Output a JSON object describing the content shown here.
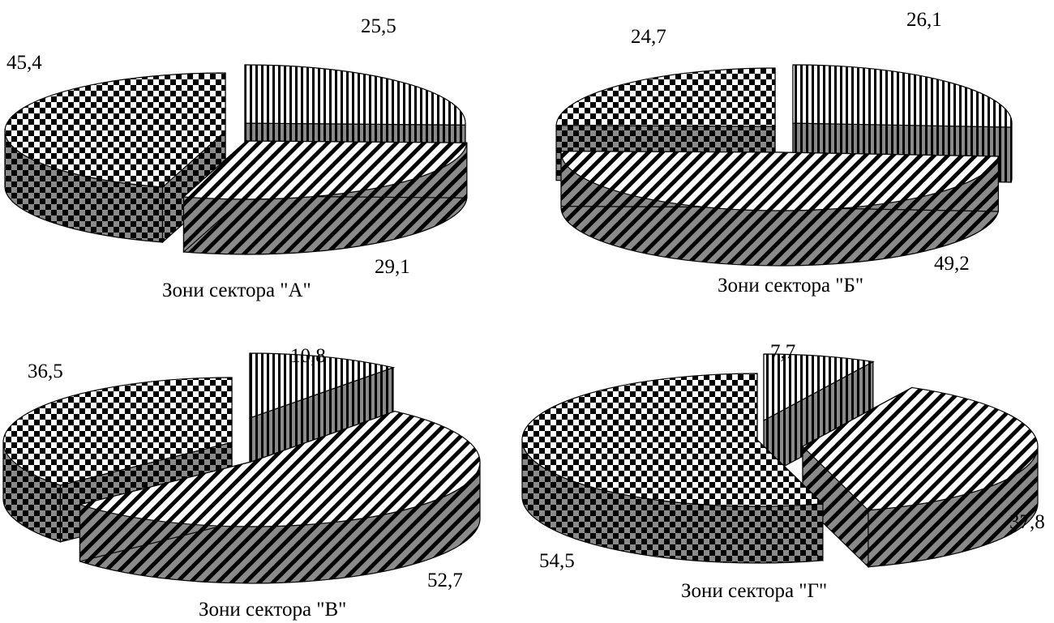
{
  "chart_data": [
    {
      "type": "pie",
      "title": "Зони сектора \"А\"",
      "slices": [
        {
          "pattern": "vertical",
          "value": 25.5,
          "label": "25,5"
        },
        {
          "pattern": "diagonal",
          "value": 29.1,
          "label": "29,1"
        },
        {
          "pattern": "checker",
          "value": 45.4,
          "label": "45,4"
        }
      ]
    },
    {
      "type": "pie",
      "title": "Зони сектора \"Б\"",
      "slices": [
        {
          "pattern": "vertical",
          "value": 26.1,
          "label": "26,1"
        },
        {
          "pattern": "diagonal",
          "value": 49.2,
          "label": "49,2"
        },
        {
          "pattern": "checker",
          "value": 24.7,
          "label": "24,7"
        }
      ]
    },
    {
      "type": "pie",
      "title": "Зони сектора \"В\"",
      "slices": [
        {
          "pattern": "vertical",
          "value": 10.8,
          "label": "10,8"
        },
        {
          "pattern": "diagonal",
          "value": 52.7,
          "label": "52,7"
        },
        {
          "pattern": "checker",
          "value": 36.5,
          "label": "36,5"
        }
      ]
    },
    {
      "type": "pie",
      "title": "Зони сектора \"Г\"",
      "slices": [
        {
          "pattern": "vertical",
          "value": 7.7,
          "label": "7,7"
        },
        {
          "pattern": "diagonal",
          "value": 37.8,
          "label": "37,8"
        },
        {
          "pattern": "checker",
          "value": 54.5,
          "label": "54,5"
        }
      ]
    }
  ]
}
